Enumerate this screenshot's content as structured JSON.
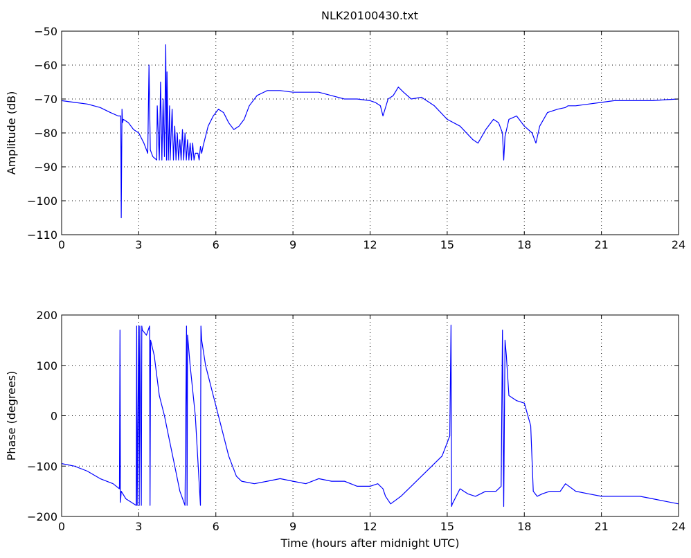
{
  "figure": {
    "title": "NLK20100430.txt",
    "line_color": "#0000ff"
  },
  "chart_data": [
    {
      "type": "line",
      "title": "NLK20100430.txt",
      "xlabel": "",
      "ylabel": "Amplitude (dB)",
      "xlim": [
        0,
        24
      ],
      "ylim": [
        -110,
        -50
      ],
      "xticks": [
        0,
        3,
        6,
        9,
        12,
        15,
        18,
        21,
        24
      ],
      "xtick_labels": [
        "0",
        "3",
        "6",
        "9",
        "12",
        "15",
        "18",
        "21",
        "24"
      ],
      "yticks": [
        -110,
        -100,
        -90,
        -80,
        -70,
        -60,
        -50
      ],
      "ytick_labels": [
        "−110",
        "−100",
        "−90",
        "−80",
        "−70",
        "−60",
        "−50"
      ],
      "grid": true,
      "series": [
        {
          "color": "#0000ff",
          "x": [
            0,
            0.5,
            1.0,
            1.5,
            1.9,
            2.2,
            2.3,
            2.32,
            2.35,
            2.37,
            2.4,
            2.6,
            2.8,
            3.0,
            3.2,
            3.35,
            3.4,
            3.45,
            3.5,
            3.55,
            3.7,
            3.72,
            3.8,
            3.85,
            3.9,
            3.95,
            4.0,
            4.05,
            4.08,
            4.1,
            4.15,
            4.2,
            4.22,
            4.3,
            4.35,
            4.4,
            4.45,
            4.5,
            4.55,
            4.6,
            4.65,
            4.7,
            4.75,
            4.8,
            4.85,
            4.9,
            4.95,
            5.0,
            5.05,
            5.1,
            5.15,
            5.2,
            5.3,
            5.35,
            5.4,
            5.45,
            5.5,
            5.7,
            5.9,
            6.1,
            6.3,
            6.5,
            6.7,
            6.9,
            7.1,
            7.3,
            7.6,
            8.0,
            8.5,
            9.0,
            9.5,
            10.0,
            10.5,
            11.0,
            11.5,
            12.0,
            12.2,
            12.4,
            12.5,
            12.7,
            12.9,
            13.1,
            13.3,
            13.6,
            14.0,
            14.5,
            15.0,
            15.5,
            16.0,
            16.2,
            16.5,
            16.8,
            17.0,
            17.15,
            17.2,
            17.25,
            17.4,
            17.7,
            18.0,
            18.3,
            18.45,
            18.6,
            18.9,
            19.3,
            19.6,
            19.7,
            20.0,
            20.5,
            21.0,
            21.5,
            22.0,
            22.5,
            23.0,
            23.5,
            24.0
          ],
          "y": [
            -70.5,
            -71,
            -71.5,
            -72.5,
            -74,
            -75,
            -75,
            -105,
            -73,
            -77,
            -76,
            -77,
            -79,
            -80,
            -83,
            -86,
            -60,
            -85,
            -86,
            -87,
            -88,
            -72,
            -88,
            -65,
            -88,
            -70,
            -87,
            -54,
            -88,
            -62,
            -88,
            -72,
            -88,
            -73,
            -88,
            -78,
            -88,
            -80,
            -88,
            -82,
            -88,
            -79,
            -88,
            -80,
            -88,
            -82,
            -88,
            -83,
            -88,
            -83,
            -88,
            -86,
            -86,
            -88,
            -84,
            -86,
            -84,
            -78,
            -75,
            -73,
            -74,
            -77,
            -79,
            -78,
            -76,
            -72,
            -69,
            -67.5,
            -67.5,
            -68,
            -68,
            -68,
            -69,
            -70,
            -70,
            -70.5,
            -71,
            -72,
            -75,
            -70,
            -69,
            -66.5,
            -68,
            -70,
            -69.5,
            -72,
            -76,
            -78,
            -82,
            -83,
            -79,
            -76,
            -77,
            -80,
            -88,
            -81,
            -76,
            -75,
            -78,
            -80,
            -83,
            -78,
            -74,
            -73,
            -72.5,
            -72,
            -72,
            -71.5,
            -71,
            -70.5,
            -70.5,
            -70.5,
            -70.5,
            -70.2,
            -70
          ]
        }
      ]
    },
    {
      "type": "line",
      "title": "",
      "xlabel": "Time (hours after midnight UTC)",
      "ylabel": "Phase (degrees)",
      "xlim": [
        0,
        24
      ],
      "ylim": [
        -200,
        200
      ],
      "xticks": [
        0,
        3,
        6,
        9,
        12,
        15,
        18,
        21,
        24
      ],
      "xtick_labels": [
        "0",
        "3",
        "6",
        "9",
        "12",
        "15",
        "18",
        "21",
        "24"
      ],
      "yticks": [
        -200,
        -100,
        0,
        100,
        200
      ],
      "ytick_labels": [
        "−200",
        "−100",
        "0",
        "100",
        "200"
      ],
      "grid": true,
      "series": [
        {
          "color": "#0000ff",
          "x": [
            0,
            0.5,
            1.0,
            1.5,
            2.0,
            2.25,
            2.27,
            2.29,
            2.32,
            2.5,
            2.9,
            2.92,
            2.94,
            3.0,
            3.02,
            3.04,
            3.1,
            3.12,
            3.14,
            3.3,
            3.42,
            3.44,
            3.46,
            3.6,
            3.8,
            4.0,
            4.2,
            4.4,
            4.6,
            4.8,
            4.86,
            4.88,
            4.9,
            5.0,
            5.2,
            5.4,
            5.42,
            5.45,
            5.6,
            5.9,
            6.2,
            6.5,
            6.8,
            7.0,
            7.5,
            8.0,
            8.5,
            9.0,
            9.5,
            10.0,
            10.5,
            11.0,
            11.5,
            12.0,
            12.3,
            12.5,
            12.6,
            12.8,
            13.2,
            13.6,
            14.0,
            14.4,
            14.8,
            15.1,
            15.15,
            15.17,
            15.2,
            15.5,
            15.8,
            16.1,
            16.5,
            16.9,
            17.1,
            17.15,
            17.2,
            17.25,
            17.3,
            17.4,
            17.7,
            18.0,
            18.25,
            18.35,
            18.5,
            18.7,
            19.0,
            19.4,
            19.6,
            20.0,
            20.5,
            21.0,
            21.5,
            22.0,
            22.5,
            23.0,
            23.5,
            24.0
          ],
          "y": [
            -95,
            -100,
            -110,
            -125,
            -135,
            -145,
            170,
            -172,
            -150,
            -165,
            -178,
            178,
            -178,
            178,
            -178,
            178,
            -178,
            178,
            170,
            160,
            178,
            -178,
            150,
            120,
            40,
            0,
            -50,
            -100,
            -150,
            -178,
            178,
            -178,
            160,
            100,
            0,
            -178,
            178,
            150,
            100,
            40,
            -20,
            -80,
            -120,
            -130,
            -135,
            -130,
            -125,
            -130,
            -135,
            -125,
            -130,
            -130,
            -140,
            -140,
            -135,
            -145,
            -160,
            -175,
            -160,
            -140,
            -120,
            -100,
            -80,
            -40,
            180,
            -180,
            -175,
            -145,
            -155,
            -160,
            -150,
            -150,
            -140,
            170,
            -180,
            150,
            120,
            40,
            30,
            25,
            -20,
            -150,
            -160,
            -155,
            -150,
            -150,
            -135,
            -150,
            -155,
            -160,
            -160,
            -160,
            -160,
            -165,
            -170,
            -175
          ]
        }
      ]
    }
  ]
}
